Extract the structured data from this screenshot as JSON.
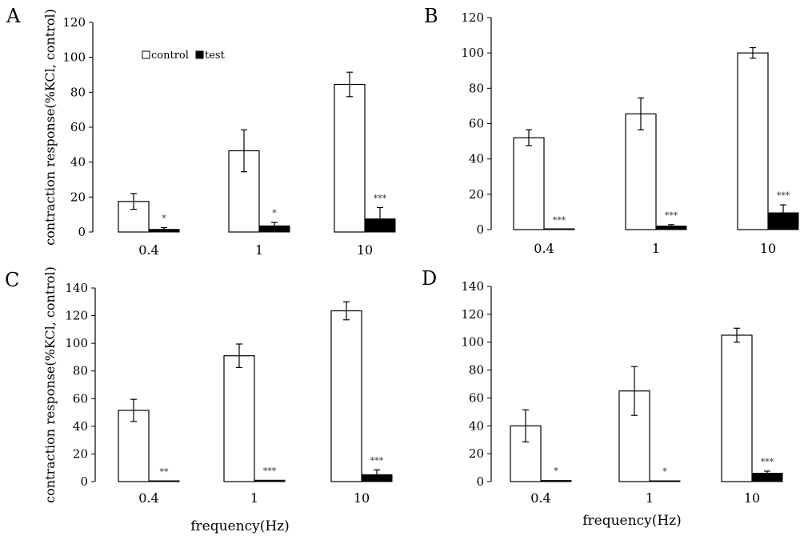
{
  "chart_data": [
    {
      "panel": "A",
      "type": "bar",
      "categories": [
        "0.4",
        "1",
        "10"
      ],
      "ylim": [
        0,
        120
      ],
      "yticks": [
        0,
        20,
        40,
        60,
        80,
        100,
        120
      ],
      "ylabel": "contraction response(%KCl, control)",
      "xlabel": "",
      "legend": {
        "placement": "top-left",
        "entries": [
          "control",
          "test"
        ]
      },
      "series": [
        {
          "name": "control",
          "fill": "#ffffff",
          "values": [
            17.5,
            46.5,
            84.5
          ],
          "errors": [
            4.5,
            12,
            7
          ]
        },
        {
          "name": "test",
          "fill": "#000000",
          "values": [
            1.5,
            3.5,
            7.5
          ],
          "errors": [
            1,
            2,
            6.5
          ]
        }
      ],
      "annotations": [
        "*",
        "*",
        "***"
      ]
    },
    {
      "panel": "B",
      "type": "bar",
      "categories": [
        "0.4",
        "1",
        "10"
      ],
      "ylim": [
        0,
        120
      ],
      "yticks": [
        0,
        20,
        40,
        60,
        80,
        100,
        120
      ],
      "ylabel": "",
      "xlabel": "",
      "series": [
        {
          "name": "control",
          "fill": "#ffffff",
          "values": [
            52,
            65.5,
            100
          ],
          "errors": [
            4.5,
            9,
            3
          ]
        },
        {
          "name": "test",
          "fill": "#000000",
          "values": [
            0,
            2,
            9.5
          ],
          "errors": [
            0,
            0.8,
            4.5
          ]
        }
      ],
      "annotations": [
        "***",
        "***",
        "***"
      ]
    },
    {
      "panel": "C",
      "type": "bar",
      "categories": [
        "0.4",
        "1",
        "10"
      ],
      "ylim": [
        0,
        140
      ],
      "yticks": [
        0,
        20,
        40,
        60,
        80,
        100,
        120,
        140
      ],
      "ylabel": "contraction response(%KCl, control)",
      "xlabel": "frequency(Hz)",
      "series": [
        {
          "name": "control",
          "fill": "#ffffff",
          "values": [
            51.5,
            91,
            123.5
          ],
          "errors": [
            8,
            8.5,
            6.5
          ]
        },
        {
          "name": "test",
          "fill": "#000000",
          "values": [
            0.3,
            1,
            5
          ],
          "errors": [
            0,
            0,
            3.5
          ]
        }
      ],
      "annotations": [
        "**",
        "***",
        "***"
      ]
    },
    {
      "panel": "D",
      "type": "bar",
      "categories": [
        "0.4",
        "1",
        "10"
      ],
      "ylim": [
        0,
        140
      ],
      "yticks": [
        0,
        20,
        40,
        60,
        80,
        100,
        120,
        140
      ],
      "ylabel": "",
      "xlabel": "frequency(Hz)",
      "series": [
        {
          "name": "control",
          "fill": "#ffffff",
          "values": [
            40,
            65,
            105
          ],
          "errors": [
            11.5,
            17.5,
            5
          ]
        },
        {
          "name": "test",
          "fill": "#000000",
          "values": [
            0.8,
            0.5,
            6
          ],
          "errors": [
            0,
            0,
            1.5
          ]
        }
      ],
      "annotations": [
        "*",
        "*",
        "***"
      ]
    }
  ]
}
